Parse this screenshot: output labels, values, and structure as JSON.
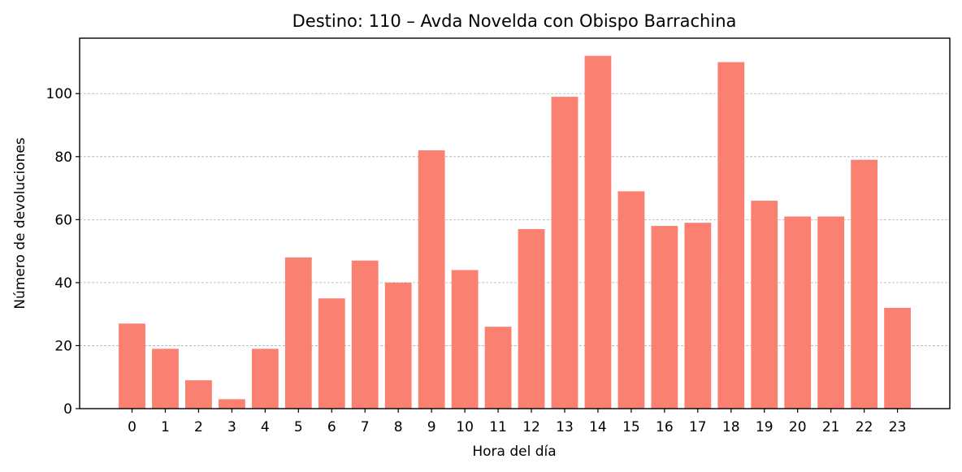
{
  "chart_data": {
    "type": "bar",
    "title": "Destino: 110 – Avda Novelda con Obispo Barrachina",
    "xlabel": "Hora del día",
    "ylabel": "Número de devoluciones",
    "categories": [
      "0",
      "1",
      "2",
      "3",
      "4",
      "5",
      "6",
      "7",
      "8",
      "9",
      "10",
      "11",
      "12",
      "13",
      "14",
      "15",
      "16",
      "17",
      "18",
      "19",
      "20",
      "21",
      "22",
      "23"
    ],
    "values": [
      27,
      19,
      9,
      3,
      19,
      48,
      35,
      47,
      40,
      82,
      44,
      26,
      57,
      99,
      112,
      69,
      58,
      59,
      110,
      66,
      61,
      61,
      79,
      32
    ],
    "ylim": [
      0,
      117.6
    ],
    "yticks": [
      0,
      20,
      40,
      60,
      80,
      100
    ],
    "grid": "horizontal dashed",
    "legend": "none",
    "bar_color": "#fa8072"
  }
}
